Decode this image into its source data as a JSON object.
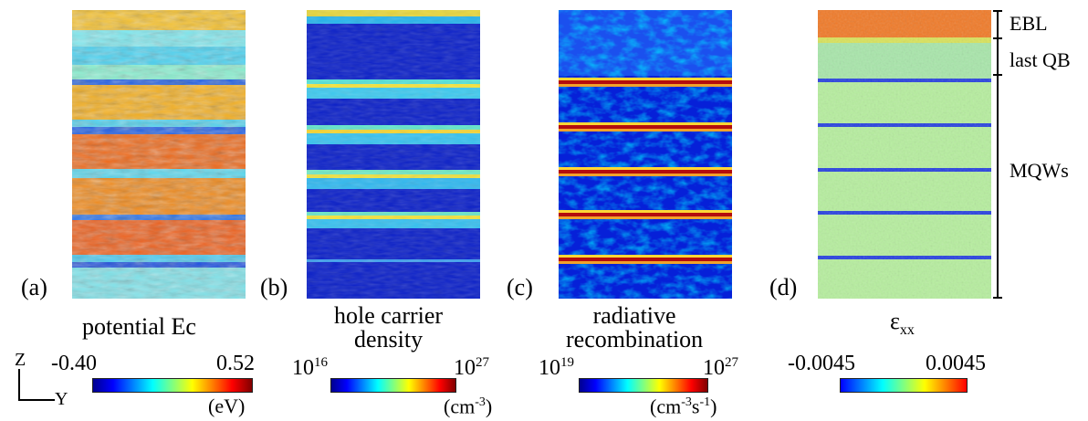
{
  "colors": {
    "jet": [
      "#00008f",
      "#0000ff",
      "#0080ff",
      "#00ffff",
      "#80ff80",
      "#ffff00",
      "#ff8000",
      "#ff0000",
      "#800000"
    ],
    "jet_low": [
      "#00008f",
      "#0000ff",
      "#0080ff",
      "#00ffff",
      "#80ff80",
      "#ffff00",
      "#ff8000",
      "#ff0000",
      "#800000"
    ]
  },
  "axes": {
    "vertical": "Z",
    "horizontal": "Y"
  },
  "panels": [
    {
      "letter": "(a)",
      "title": "potential Ec",
      "scale_min": "-0.40",
      "scale_max": "0.52",
      "unit": "(eV)"
    },
    {
      "letter": "(b)",
      "title_line1": "hole carrier",
      "title_line2": "density",
      "scale_min_base": "10",
      "scale_min_exp": "16",
      "scale_max_base": "10",
      "scale_max_exp": "27",
      "unit_base": "(cm",
      "unit_exp": "-3",
      "unit_tail": ")"
    },
    {
      "letter": "(c)",
      "title_line1": "radiative",
      "title_line2": "recombination",
      "scale_min_base": "10",
      "scale_min_exp": "19",
      "scale_max_base": "10",
      "scale_max_exp": "27",
      "unit_base": "(cm",
      "unit_exp1": "-3",
      "unit_mid": "s",
      "unit_exp2": "-1",
      "unit_tail": ")"
    },
    {
      "letter": "(d)",
      "title_main": "ε",
      "title_sub": "xx",
      "scale_min": "-0.0045",
      "scale_max": "0.0045"
    }
  ],
  "layers": [
    {
      "label": "EBL"
    },
    {
      "label": "last QB"
    },
    {
      "label": "MQWs"
    }
  ]
}
